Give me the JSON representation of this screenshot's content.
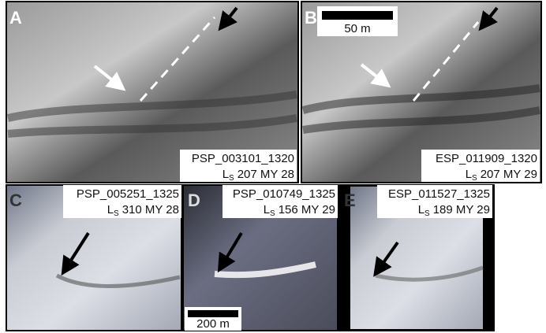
{
  "panels": [
    {
      "letter": "A",
      "image_id": "PSP_003101_1320",
      "season": {
        "symbol": "L",
        "subscript": "S",
        "text": "207 MY 28"
      }
    },
    {
      "letter": "B",
      "image_id": "ESP_011909_1320",
      "season": {
        "symbol": "L",
        "subscript": "S",
        "text": "207 MY 29"
      }
    },
    {
      "letter": "C",
      "image_id": "PSP_005251_1325",
      "season": {
        "symbol": "L",
        "subscript": "S",
        "text": "310 MY 28"
      }
    },
    {
      "letter": "D",
      "image_id": "PSP_010749_1325",
      "season": {
        "symbol": "L",
        "subscript": "S",
        "text": "156 MY 29"
      }
    },
    {
      "letter": "E",
      "image_id": "ESP_011527_1325",
      "season": {
        "symbol": "L",
        "subscript": "S",
        "text": "189 MY 29"
      }
    }
  ],
  "scale_bars": [
    {
      "label": "50 m"
    },
    {
      "label": "200 m"
    }
  ]
}
